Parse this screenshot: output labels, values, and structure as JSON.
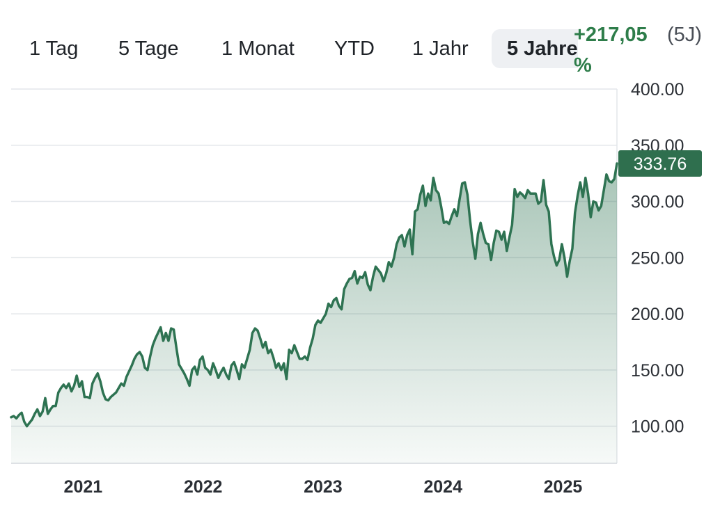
{
  "tabs": [
    {
      "label": "1 Tag",
      "active": false
    },
    {
      "label": "5 Tage",
      "active": false
    },
    {
      "label": "1 Monat",
      "active": false
    },
    {
      "label": "YTD",
      "active": false
    },
    {
      "label": "1 Jahr",
      "active": false
    },
    {
      "label": "5 Jahre",
      "active": true
    }
  ],
  "performance": {
    "value": "+217,05 %",
    "period": "(5J)"
  },
  "colors": {
    "line": "#2e7352",
    "tag": "#2f6f4e",
    "positive": "#2e7d4a"
  },
  "chart_data": {
    "type": "area",
    "title": "",
    "xlabel": "",
    "ylabel": "",
    "ylim": [
      67,
      400
    ],
    "yticks": [
      "100.00",
      "150.00",
      "200.00",
      "250.00",
      "300.00",
      "350.00",
      "400.00"
    ],
    "xticks": [
      "2021",
      "2022",
      "2023",
      "2024",
      "2025"
    ],
    "grid": true,
    "last_value_label": "333.76",
    "x_start": 2020.6,
    "x_end": 2025.65,
    "series": [
      {
        "values": [
          108,
          109,
          107,
          110,
          112,
          104,
          100,
          103,
          106,
          111,
          115,
          109,
          113,
          125,
          111,
          115,
          118,
          118,
          130,
          134,
          137,
          134,
          138,
          131,
          136,
          145,
          135,
          140,
          126,
          126,
          125,
          138,
          143,
          147,
          140,
          130,
          124,
          123,
          126,
          128,
          130,
          134,
          138,
          136,
          144,
          149,
          154,
          160,
          164,
          166,
          162,
          152,
          150,
          162,
          172,
          178,
          183,
          188,
          176,
          183,
          176,
          187,
          186,
          170,
          155,
          151,
          147,
          142,
          136,
          150,
          153,
          146,
          159,
          162,
          152,
          150,
          146,
          156,
          150,
          143,
          148,
          152,
          146,
          142,
          154,
          157,
          150,
          142,
          155,
          152,
          160,
          168,
          183,
          187,
          185,
          178,
          170,
          175,
          165,
          168,
          161,
          152,
          156,
          150,
          156,
          142,
          168,
          165,
          172,
          166,
          160,
          160,
          162,
          159,
          170,
          178,
          190,
          194,
          192,
          196,
          200,
          209,
          206,
          212,
          214,
          207,
          204,
          222,
          227,
          231,
          232,
          238,
          227,
          233,
          232,
          237,
          226,
          221,
          233,
          242,
          239,
          236,
          229,
          236,
          246,
          242,
          250,
          262,
          268,
          270,
          260,
          270,
          275,
          253,
          291,
          293,
          306,
          314,
          296,
          307,
          301,
          321,
          310,
          307,
          295,
          281,
          282,
          280,
          287,
          293,
          287,
          302,
          316,
          317,
          306,
          283,
          264,
          249,
          271,
          281,
          271,
          263,
          262,
          248,
          263,
          274,
          273,
          266,
          273,
          256,
          268,
          279,
          311,
          304,
          308,
          306,
          303,
          310,
          307,
          307,
          307,
          298,
          300,
          319,
          297,
          291,
          262,
          251,
          243,
          248,
          262,
          250,
          233,
          247,
          258,
          290,
          305,
          317,
          304,
          321,
          307,
          286,
          300,
          299,
          292,
          296,
          310,
          324,
          318,
          317,
          320,
          333.76
        ]
      }
    ]
  }
}
